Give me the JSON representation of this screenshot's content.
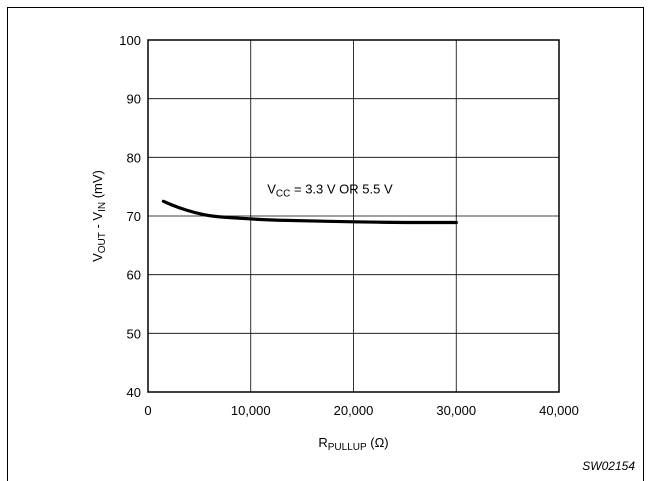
{
  "chart_data": {
    "type": "line",
    "xlabel": {
      "main": "R",
      "sub": "PULLUP",
      "suffix": " (Ω)"
    },
    "ylabel": {
      "p1": "V",
      "s1": "OUT",
      "p2": " - V",
      "s2": "IN",
      "p3": " (mV)"
    },
    "xlim": [
      0,
      40000
    ],
    "ylim": [
      40,
      100
    ],
    "xticks": [
      0,
      10000,
      20000,
      30000,
      40000
    ],
    "xtick_labels": [
      "0",
      "10,000",
      "20,000",
      "30,000",
      "40,000"
    ],
    "yticks": [
      40,
      50,
      60,
      70,
      80,
      90,
      100
    ],
    "ytick_labels": [
      "40",
      "50",
      "60",
      "70",
      "80",
      "90",
      "100"
    ],
    "grid": true,
    "series": [
      {
        "x": [
          1500,
          3000,
          4500,
          6000,
          8000,
          10000,
          12000,
          15000,
          20000,
          25000,
          30000
        ],
        "y": [
          72.5,
          71.4,
          70.6,
          70.0,
          69.7,
          69.5,
          69.3,
          69.2,
          69.0,
          68.9,
          68.9
        ]
      }
    ],
    "annotations": [
      {
        "main": "V",
        "sub": "CC",
        "rest": " = 3.3 V OR 5.5 V",
        "x": 15500,
        "y": 74.5
      }
    ],
    "figure_id": "SW02154"
  }
}
